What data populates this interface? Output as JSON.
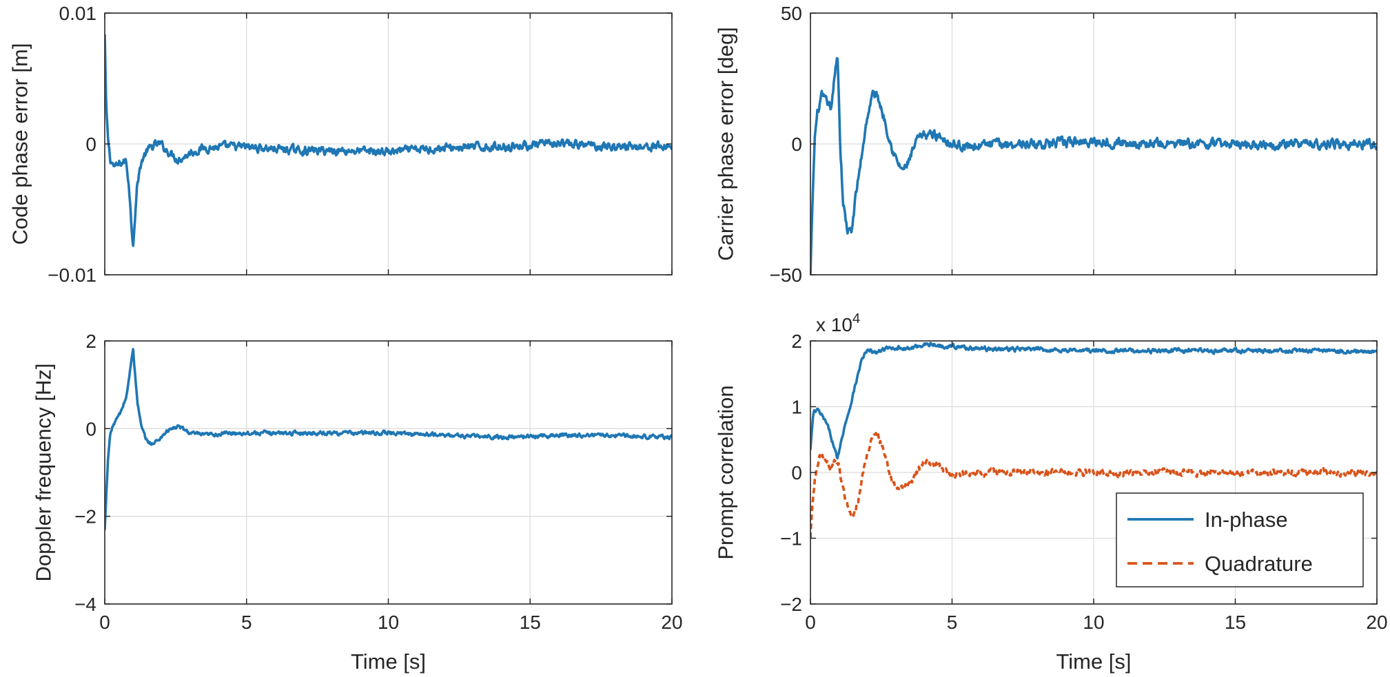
{
  "chart_data": [
    {
      "id": "code-phase",
      "type": "line",
      "title": "",
      "xlabel": "",
      "ylabel": "Code phase error [m]",
      "xlim": [
        0,
        20
      ],
      "ylim": [
        -0.01,
        0.01
      ],
      "xticks": [
        0,
        5,
        10,
        15,
        20
      ],
      "xtick_labels": [
        "",
        "",
        "",
        "",
        ""
      ],
      "yticks": [
        -0.01,
        0,
        0.01
      ],
      "ytick_labels": [
        "−0.01",
        "0",
        "0.01"
      ],
      "grid": true,
      "exponent_label": "",
      "series": [
        {
          "color": "#1f77b4",
          "dash": false,
          "noise": 0.00025,
          "x": [
            0,
            0.05,
            0.12,
            0.2,
            0.35,
            0.55,
            0.75,
            0.85,
            0.95,
            1.0,
            1.05,
            1.15,
            1.3,
            1.5,
            1.75,
            1.95,
            2.2,
            2.6,
            3.0,
            3.5,
            4.5,
            5.5,
            7,
            8.5,
            10,
            12,
            14,
            16,
            18,
            20
          ],
          "y": [
            0.0083,
            0.003,
            0.0002,
            -0.0012,
            -0.0018,
            -0.0015,
            -0.0013,
            -0.003,
            -0.0065,
            -0.0075,
            -0.006,
            -0.003,
            -0.0013,
            -0.0005,
            -0.0001,
            0.0,
            -0.0005,
            -0.0012,
            -0.0007,
            -0.0003,
            -0.0002,
            -0.0003,
            -0.0005,
            -0.0005,
            -0.0006,
            -0.0003,
            -0.0002,
            0.0,
            -0.0002,
            -0.0002
          ]
        }
      ]
    },
    {
      "id": "carrier-phase",
      "type": "line",
      "title": "",
      "xlabel": "",
      "ylabel": "Carrier phase error [deg]",
      "xlim": [
        0,
        20
      ],
      "ylim": [
        -50,
        50
      ],
      "xticks": [
        0,
        5,
        10,
        15,
        20
      ],
      "xtick_labels": [
        "",
        "",
        "",
        "",
        ""
      ],
      "yticks": [
        -50,
        0,
        50
      ],
      "ytick_labels": [
        "−50",
        "0",
        "50"
      ],
      "grid": true,
      "exponent_label": "",
      "series": [
        {
          "color": "#1f77b4",
          "dash": false,
          "noise": 1.4,
          "x": [
            0,
            0.08,
            0.15,
            0.25,
            0.4,
            0.55,
            0.75,
            0.85,
            0.95,
            1.0,
            1.05,
            1.15,
            1.3,
            1.45,
            1.6,
            1.8,
            2.0,
            2.2,
            2.35,
            2.6,
            2.9,
            3.1,
            3.3,
            3.5,
            3.8,
            4.2,
            4.6,
            5.0,
            5.5,
            6.5,
            8,
            10,
            12,
            14,
            16,
            18,
            20
          ],
          "y": [
            -50,
            -20,
            2,
            12,
            18,
            16,
            14,
            25,
            35,
            20,
            0,
            -22,
            -33,
            -34,
            -20,
            -5,
            10,
            19,
            19,
            10,
            -2,
            -8,
            -10,
            -6,
            2,
            4,
            3,
            0,
            -1,
            0,
            0,
            1,
            0,
            0,
            0,
            0,
            0
          ]
        }
      ]
    },
    {
      "id": "doppler",
      "type": "line",
      "title": "",
      "xlabel": "Time [s]",
      "ylabel": "Doppler frequency [Hz]",
      "xlim": [
        0,
        20
      ],
      "ylim": [
        -4,
        2
      ],
      "xticks": [
        0,
        5,
        10,
        15,
        20
      ],
      "xtick_labels": [
        "0",
        "5",
        "10",
        "15",
        "20"
      ],
      "yticks": [
        -4,
        -2,
        0,
        2
      ],
      "ytick_labels": [
        "−4",
        "−2",
        "0",
        "2"
      ],
      "grid": true,
      "exponent_label": "",
      "series": [
        {
          "color": "#1f77b4",
          "dash": false,
          "noise": 0.035,
          "x": [
            0,
            0.05,
            0.12,
            0.2,
            0.35,
            0.55,
            0.75,
            0.85,
            0.95,
            1.0,
            1.05,
            1.15,
            1.3,
            1.5,
            1.7,
            1.9,
            2.2,
            2.6,
            3.0,
            3.5,
            4.5,
            6,
            8,
            10,
            12,
            14,
            16,
            18,
            20
          ],
          "y": [
            -2.3,
            -1.6,
            -0.6,
            -0.1,
            0.15,
            0.35,
            0.7,
            1.1,
            1.6,
            1.85,
            1.4,
            0.6,
            0.0,
            -0.3,
            -0.35,
            -0.25,
            -0.05,
            0.05,
            -0.1,
            -0.15,
            -0.1,
            -0.1,
            -0.1,
            -0.1,
            -0.15,
            -0.2,
            -0.15,
            -0.15,
            -0.2
          ]
        }
      ]
    },
    {
      "id": "prompt",
      "type": "line",
      "title": "",
      "xlabel": "Time [s]",
      "ylabel": "Prompt correlation",
      "xlim": [
        0,
        20
      ],
      "ylim": [
        -2,
        2
      ],
      "xticks": [
        0,
        5,
        10,
        15,
        20
      ],
      "xtick_labels": [
        "0",
        "5",
        "10",
        "15",
        "20"
      ],
      "yticks": [
        -2,
        -1,
        0,
        1,
        2
      ],
      "ytick_labels": [
        "−2",
        "−1",
        "0",
        "1",
        "2"
      ],
      "grid": true,
      "exponent_label": "x 10",
      "exponent_sup": "4",
      "legend_position": "bottom-right",
      "series": [
        {
          "name": "In-phase",
          "color": "#1f77b4",
          "dash": false,
          "noise": 0.025,
          "x": [
            0,
            0.1,
            0.25,
            0.5,
            0.7,
            0.85,
            0.95,
            1.05,
            1.2,
            1.4,
            1.6,
            1.8,
            2.0,
            2.3,
            2.6,
            3.0,
            3.5,
            4.0,
            4.5,
            5.0,
            6,
            8,
            10,
            12,
            14,
            16,
            18,
            20
          ],
          "y": [
            0.35,
            0.9,
            0.95,
            0.8,
            0.6,
            0.35,
            0.22,
            0.4,
            0.7,
            1.0,
            1.35,
            1.7,
            1.85,
            1.82,
            1.87,
            1.9,
            1.88,
            1.95,
            1.93,
            1.92,
            1.88,
            1.87,
            1.85,
            1.85,
            1.85,
            1.85,
            1.85,
            1.83
          ]
        },
        {
          "name": "Quadrature",
          "color": "#d95319",
          "dash": true,
          "noise": 0.04,
          "x": [
            0,
            0.05,
            0.15,
            0.3,
            0.5,
            0.7,
            0.9,
            1.0,
            1.1,
            1.3,
            1.5,
            1.7,
            2.0,
            2.2,
            2.35,
            2.6,
            2.9,
            3.1,
            3.3,
            3.6,
            4.0,
            4.5,
            5.0,
            6,
            8,
            10,
            12,
            14,
            16,
            18,
            20
          ],
          "y": [
            -1.0,
            -0.6,
            -0.1,
            0.25,
            0.25,
            0.1,
            0.2,
            0.1,
            -0.15,
            -0.5,
            -0.75,
            -0.4,
            0.3,
            0.55,
            0.6,
            0.3,
            -0.15,
            -0.3,
            -0.25,
            -0.1,
            0.15,
            0.1,
            -0.05,
            0.0,
            0.0,
            0.0,
            0.0,
            0.0,
            0.0,
            0.0,
            0.0
          ]
        }
      ]
    }
  ]
}
